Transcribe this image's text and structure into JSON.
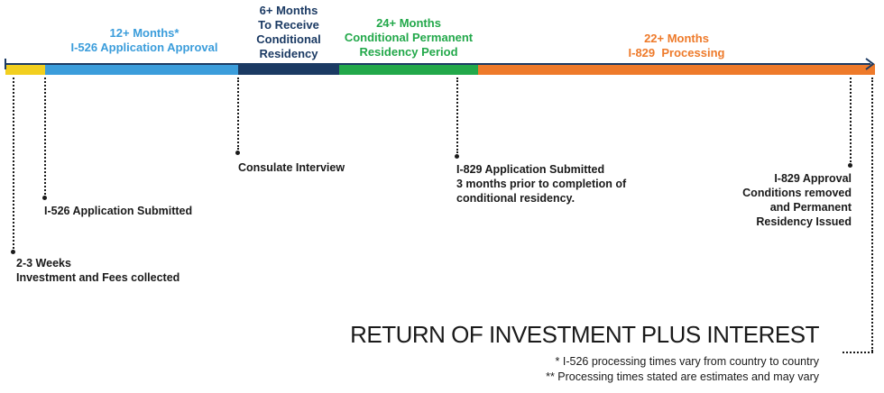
{
  "phases": [
    {
      "key": "i526",
      "lines": [
        "12+ Months*",
        "I-526 Application Approval"
      ],
      "color": "#3b9ddb"
    },
    {
      "key": "consulate",
      "lines": [
        "6+ Months",
        "To Receive",
        "Conditional",
        "Residency"
      ],
      "color": "#1b3a63"
    },
    {
      "key": "conditional",
      "lines": [
        "24+ Months",
        "Conditional Permanent",
        "Residency Period"
      ],
      "color": "#22a84a"
    },
    {
      "key": "i829",
      "lines": [
        "22+ Months",
        "I-829  Processing"
      ],
      "color": "#ee7a2a"
    }
  ],
  "timeline_colors": {
    "weeks": "#f2cf1f",
    "axis": "#1b3a63"
  },
  "milestones": {
    "investment": [
      "2-3 Weeks",
      "Investment and Fees collected"
    ],
    "i526_submitted": [
      "I-526 Application Submitted"
    ],
    "consulate_interview": [
      "Consulate Interview"
    ],
    "i829_submitted": [
      "I-829 Application Submitted",
      "3 months prior to completion of",
      "conditional residency."
    ],
    "i829_approval": [
      "I-829 Approval",
      "Conditions removed",
      "and Permanent",
      "Residency Issued"
    ]
  },
  "return_text": "RETURN OF INVESTMENT PLUS INTEREST",
  "footnotes": [
    "* I-526 processing times vary from country to country",
    "** Processing times stated are estimates and may vary"
  ]
}
